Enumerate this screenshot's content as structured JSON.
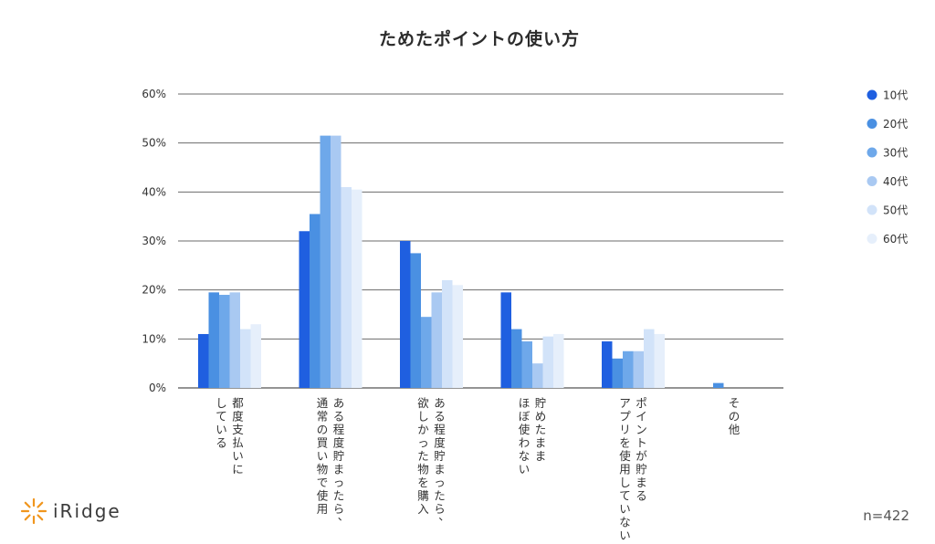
{
  "chart_data": {
    "type": "bar",
    "title": "ためたポイントの使い方",
    "xlabel": "",
    "ylabel": "",
    "ylim": [
      0,
      60
    ],
    "yticks": [
      "0%",
      "10%",
      "20%",
      "30%",
      "40%",
      "50%",
      "60%"
    ],
    "grid": true,
    "legend_position": "right",
    "categories": [
      [
        "都度支払いに",
        "している"
      ],
      [
        "ある程度貯まったら、",
        "通常の買い物で使用"
      ],
      [
        "ある程度貯まったら、",
        "欲しかった物を購入"
      ],
      [
        "貯めたまま",
        "ほぼ使わない"
      ],
      [
        "ポイントが貯まる",
        "アプリを使用していない"
      ],
      [
        "その他"
      ]
    ],
    "series": [
      {
        "name": "10代",
        "color": "#1f5fe0",
        "values": [
          11,
          32,
          30,
          19.5,
          9.5,
          0
        ]
      },
      {
        "name": "20代",
        "color": "#4a90e2",
        "values": [
          19.5,
          35.5,
          27.5,
          12,
          6,
          1
        ]
      },
      {
        "name": "30代",
        "color": "#6ea8ea",
        "values": [
          19,
          51.5,
          14.5,
          9.5,
          7.5,
          0
        ]
      },
      {
        "name": "40代",
        "color": "#a9c9f2",
        "values": [
          19.5,
          51.5,
          19.5,
          5,
          7.5,
          0
        ]
      },
      {
        "name": "50代",
        "color": "#d2e3f9",
        "values": [
          12,
          41,
          22,
          10.5,
          12,
          0
        ]
      },
      {
        "name": "60代",
        "color": "#e6effb",
        "values": [
          13,
          40.5,
          21,
          11,
          11,
          0
        ]
      }
    ]
  },
  "footer": {
    "logo_text": "iRidge",
    "sample_size": "n=422"
  }
}
